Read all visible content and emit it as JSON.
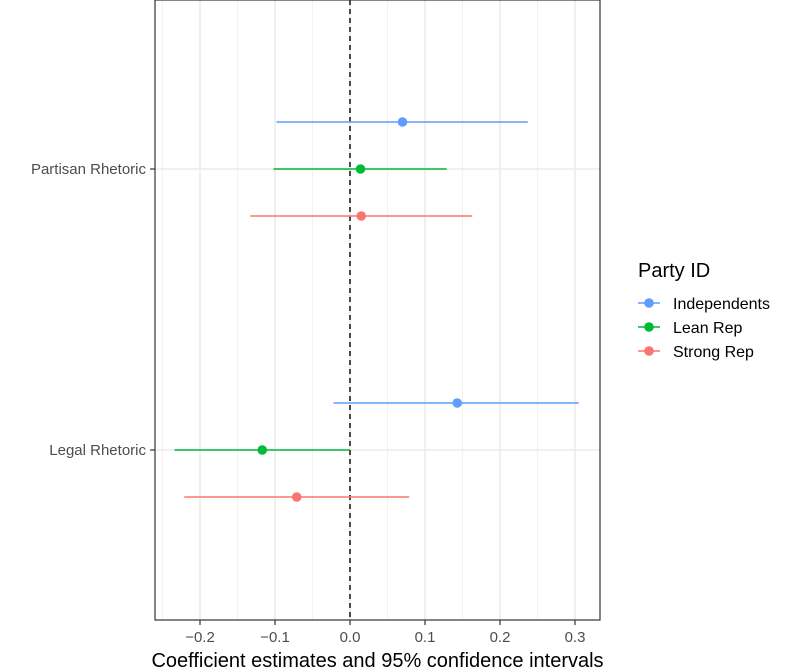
{
  "chart_data": {
    "type": "scatter",
    "subtype": "coefficient plot with horizontal confidence intervals",
    "xlabel": "Coefficient estimates and 95% confidence intervals",
    "ylabel": "",
    "xlim": [
      -0.26,
      0.335
    ],
    "x_ticks": [
      -0.2,
      -0.1,
      0.0,
      0.1,
      0.2,
      0.3
    ],
    "x_tick_labels": [
      "−0.2",
      "−0.1",
      "0.0",
      "0.1",
      "0.2",
      "0.3"
    ],
    "categories": [
      "Partisan Rhetoric",
      "Legal Rhetoric"
    ],
    "reference_line": {
      "x": 0,
      "style": "dashed"
    },
    "grid": true,
    "legend": {
      "title": "Party ID",
      "position": "right"
    },
    "series": [
      {
        "name": "Independents",
        "color": "#619CFF",
        "points": [
          {
            "category": "Partisan Rhetoric",
            "estimate": 0.07,
            "lower": -0.098,
            "upper": 0.237
          },
          {
            "category": "Legal Rhetoric",
            "estimate": 0.143,
            "lower": -0.022,
            "upper": 0.305
          }
        ]
      },
      {
        "name": "Lean Rep",
        "color": "#00BA38",
        "points": [
          {
            "category": "Partisan Rhetoric",
            "estimate": 0.014,
            "lower": -0.102,
            "upper": 0.129
          },
          {
            "category": "Legal Rhetoric",
            "estimate": -0.117,
            "lower": -0.234,
            "upper": 0.0
          }
        ]
      },
      {
        "name": "Strong Rep",
        "color": "#F8766D",
        "points": [
          {
            "category": "Partisan Rhetoric",
            "estimate": 0.015,
            "lower": -0.133,
            "upper": 0.163
          },
          {
            "category": "Legal Rhetoric",
            "estimate": -0.071,
            "lower": -0.221,
            "upper": 0.079
          }
        ]
      }
    ]
  }
}
